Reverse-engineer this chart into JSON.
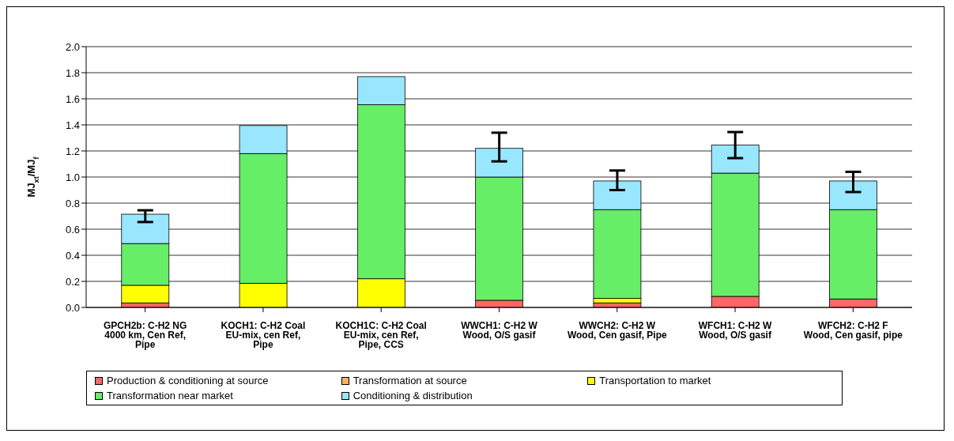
{
  "chart_data": {
    "type": "bar",
    "stacked": true,
    "ylabel": "MJ$_{xt}$/MJ$_{f}$",
    "categories": [
      "GPCH2b: C-H2 NG 4000 km, Cen Ref, Pipe",
      "KOCH1: C-H2 Coal EU-mix, cen Ref, Pipe",
      "KOCH1C: C-H2 Coal EU-mix, cen Ref, Pipe, CCS",
      "WWCH1: C-H2 W Wood, O/S gasif",
      "WWCH2: C-H2 W Wood, Cen gasif, Pipe",
      "WFCH1: C-H2 W Wood, O/S gasif",
      "WFCH2: C-H2 F Wood, Cen gasif, pipe"
    ],
    "series": [
      {
        "name": "Production & conditioning at source",
        "color": "#ff6666",
        "values": [
          0.035,
          0,
          0,
          0.055,
          0.035,
          0.085,
          0.065
        ]
      },
      {
        "name": "Transformation at source",
        "color": "#ffb366",
        "values": [
          0,
          0,
          0,
          0,
          0,
          0,
          0
        ]
      },
      {
        "name": "Transportation to market",
        "color": "#ffff00",
        "values": [
          0.135,
          0.185,
          0.22,
          0,
          0.035,
          0,
          0
        ]
      },
      {
        "name": "Transformation near market",
        "color": "#66ee66",
        "values": [
          0.32,
          0.995,
          1.335,
          0.945,
          0.68,
          0.945,
          0.685
        ]
      },
      {
        "name": "Conditioning & distribution",
        "color": "#99e6ff",
        "values": [
          0.225,
          0.215,
          0.215,
          0.22,
          0.22,
          0.215,
          0.22
        ],
        "errors": [
          [
            0.655,
            0.745
          ],
          0,
          0,
          [
            1.12,
            1.34
          ],
          [
            0.9,
            1.05
          ],
          [
            1.145,
            1.345
          ],
          [
            0.885,
            1.04
          ]
        ]
      }
    ],
    "ylim": [
      0,
      2
    ],
    "yticks": [
      {
        "value": 0,
        "label": "0.0"
      },
      {
        "value": 0.2,
        "label": "0.2"
      },
      {
        "value": 0.4,
        "label": "0.4"
      },
      {
        "value": 0.6,
        "label": "0.6"
      },
      {
        "value": 0.8,
        "label": "0.8"
      },
      {
        "value": 1,
        "label": "1.0"
      },
      {
        "value": 1.2,
        "label": "1.2"
      },
      {
        "value": 1.4,
        "label": "1.4"
      },
      {
        "value": 1.6,
        "label": "1.6"
      },
      {
        "value": 1.8,
        "label": "1.8"
      },
      {
        "value": 2,
        "label": "2.0"
      }
    ],
    "grid": "y",
    "legend": "bottom"
  }
}
